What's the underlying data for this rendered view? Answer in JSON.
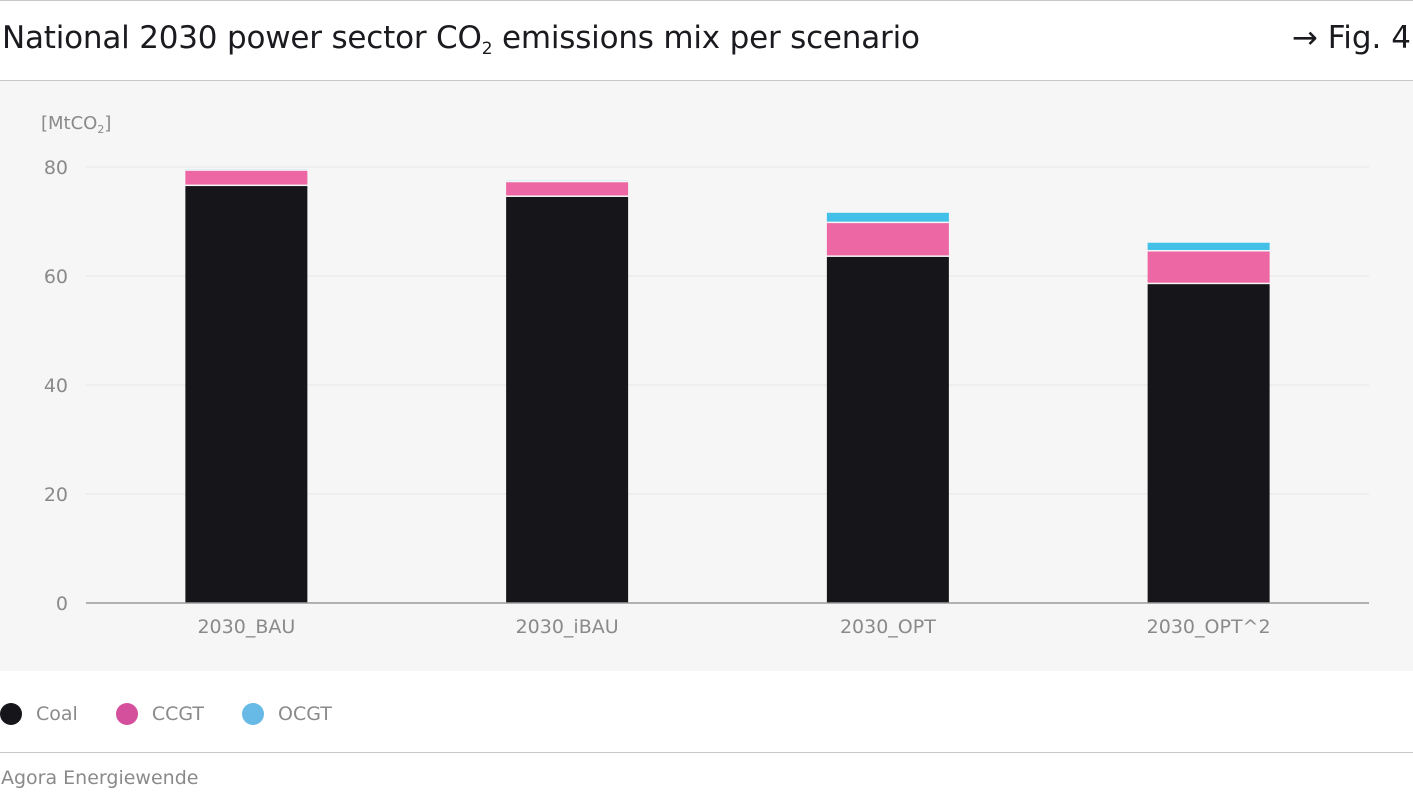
{
  "header": {
    "title_prefix": "National 2030 power sector CO",
    "title_subscript": "2",
    "title_suffix": " emissions mix per scenario",
    "fig_ref": "→ Fig. 4"
  },
  "colors": {
    "coal": "#16161a",
    "ccgt": "#ec67a3",
    "ocgt": "#42c0e8",
    "legend_ccgt": "#d4509c",
    "legend_ocgt": "#67b9e6",
    "grid": "#e6e6e6",
    "axis": "#9a9a9a",
    "tick_text": "#8a8a8a"
  },
  "chart_data": {
    "type": "bar",
    "stacked": true,
    "unit_prefix": "[MtCO",
    "unit_subscript": "2",
    "unit_suffix": "]",
    "categories": [
      "2030_BAU",
      "2030_iBAU",
      "2030_OPT",
      "2030_OPT^2"
    ],
    "series": [
      {
        "name": "Coal",
        "color_key": "coal",
        "values": [
          76.5,
          74.5,
          63.5,
          58.5
        ]
      },
      {
        "name": "CCGT",
        "color_key": "ccgt",
        "values": [
          2.8,
          2.7,
          6.2,
          6.0
        ]
      },
      {
        "name": "OCGT",
        "color_key": "ocgt",
        "values": [
          0.3,
          0.3,
          1.9,
          1.6
        ]
      }
    ],
    "ylim": [
      0,
      80
    ],
    "yticks": [
      0,
      20,
      40,
      60,
      80
    ],
    "grid": true,
    "legend_position": "bottom-left"
  },
  "legend": [
    {
      "label": "Coal",
      "color_key": "coal"
    },
    {
      "label": "CCGT",
      "color_key": "legend_ccgt"
    },
    {
      "label": "OCGT",
      "color_key": "legend_ocgt"
    }
  ],
  "source": "Agora Energiewende"
}
